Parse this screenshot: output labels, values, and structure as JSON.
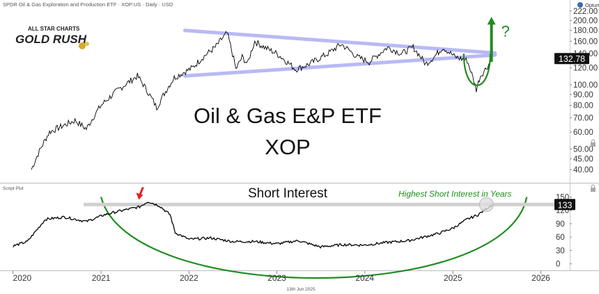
{
  "header": {
    "instrument": "SPDR Oil & Gas Exploration and Production ETF · XOP:US · Daily · USD",
    "watermark": "Optuma",
    "logo_line1": "ALL STAR CHARTS",
    "logo_line2": "GOLD RUSH"
  },
  "footer": {
    "date_label": "13th Jun 2025"
  },
  "colors": {
    "price_line": "#000000",
    "channel": "#b9b9f5",
    "green_annotation": "#1e8c1e",
    "red_arrow": "#e82020",
    "last_value_bg": "#111111"
  },
  "chart_data": [
    {
      "type": "line",
      "panel": "price",
      "title": "Oil & Gas E&P ETF",
      "subtitle": "XOP",
      "last_value": "132.78",
      "y_scale": "log",
      "ylim": [
        36,
        225
      ],
      "y_ticks": [
        "222.00",
        "200.00",
        "180.00",
        "160.00",
        "140.00",
        "120.00",
        "100.00",
        "90.00",
        "80.00",
        "70.00",
        "60.00",
        "50.00",
        "45.00",
        "40.00"
      ],
      "x": [
        "2020-03-18",
        "2020-06-01",
        "2020-09-15",
        "2020-11-01",
        "2021-01-01",
        "2021-03-15",
        "2021-06-01",
        "2021-08-20",
        "2021-11-01",
        "2022-01-15",
        "2022-03-01",
        "2022-04-20",
        "2022-06-08",
        "2022-07-15",
        "2022-08-10",
        "2022-09-01",
        "2022-10-01",
        "2022-11-10",
        "2023-01-01",
        "2023-03-20",
        "2023-05-15",
        "2023-08-01",
        "2023-09-25",
        "2023-12-01",
        "2024-01-20",
        "2024-04-05",
        "2024-06-01",
        "2024-07-20",
        "2024-09-10",
        "2024-10-15",
        "2024-11-20",
        "2025-01-10",
        "2025-03-01",
        "2025-04-08",
        "2025-04-25",
        "2025-05-20",
        "2025-06-13"
      ],
      "values": [
        40,
        60,
        68,
        62,
        80,
        95,
        110,
        78,
        108,
        120,
        135,
        150,
        175,
        118,
        135,
        125,
        160,
        150,
        140,
        118,
        125,
        140,
        155,
        135,
        128,
        150,
        140,
        150,
        125,
        135,
        150,
        135,
        130,
        95,
        110,
        120,
        132.78
      ],
      "annotations": [
        {
          "type": "trend_channel",
          "upper": [
            [
              "2021-12-15",
              180
            ],
            [
              "2025-06-25",
              141
            ]
          ],
          "lower": [
            [
              "2021-12-15",
              110
            ],
            [
              "2025-06-25",
              138
            ]
          ]
        },
        {
          "type": "rounded_bottom",
          "x_range": [
            "2025-02-15",
            "2025-06-05"
          ],
          "low": 97,
          "high": 140
        },
        {
          "type": "arrow_up",
          "x": "2025-06-10",
          "from": 128,
          "to": 205,
          "label": "?"
        }
      ]
    },
    {
      "type": "line",
      "panel": "indicator",
      "panel_label": "Script Plot",
      "title": "Short Interest",
      "annotation_text": "Highest Short Interest in Years",
      "last_value": "133",
      "ylim": [
        -10,
        160
      ],
      "y_ticks": [
        "150",
        "120",
        "90",
        "60",
        "30",
        "0"
      ],
      "x": [
        "2020-01-02",
        "2020-03-01",
        "2020-05-15",
        "2020-08-01",
        "2020-11-01",
        "2021-01-15",
        "2021-04-01",
        "2021-06-10",
        "2021-07-15",
        "2021-09-01",
        "2021-10-15",
        "2021-11-05",
        "2022-01-01",
        "2022-04-01",
        "2022-07-01",
        "2022-10-01",
        "2023-01-01",
        "2023-04-01",
        "2023-05-15",
        "2023-07-01",
        "2023-10-01",
        "2024-01-01",
        "2024-04-01",
        "2024-07-01",
        "2024-09-01",
        "2024-11-01",
        "2025-01-01",
        "2025-03-01",
        "2025-04-15",
        "2025-06-13"
      ],
      "values": [
        40,
        50,
        100,
        105,
        95,
        110,
        120,
        128,
        140,
        130,
        110,
        70,
        55,
        58,
        50,
        50,
        45,
        52,
        45,
        38,
        43,
        42,
        48,
        52,
        60,
        68,
        80,
        100,
        110,
        133
      ],
      "annotations": [
        {
          "type": "red_arrow",
          "x": "2021-06-10",
          "value": 150
        },
        {
          "type": "bowl",
          "x_range": [
            "2021-01-01",
            "2025-04-15"
          ],
          "low": -2,
          "high": 150
        },
        {
          "type": "reference_line",
          "value": 133
        },
        {
          "type": "highlight",
          "x": "2025-05-20",
          "value": 133
        }
      ]
    }
  ],
  "x_axis": {
    "ticks": [
      {
        "label": "2020",
        "date": "2020-01-01"
      },
      {
        "label": "2021",
        "date": "2021-01-01"
      },
      {
        "label": "2022",
        "date": "2022-01-01"
      },
      {
        "label": "2023",
        "date": "2023-01-01"
      },
      {
        "label": "2024",
        "date": "2024-01-01"
      },
      {
        "label": "2025",
        "date": "2025-01-01"
      },
      {
        "label": "2026",
        "date": "2026-01-01"
      }
    ],
    "range": [
      "2019-11-20",
      "2026-05-01"
    ]
  }
}
